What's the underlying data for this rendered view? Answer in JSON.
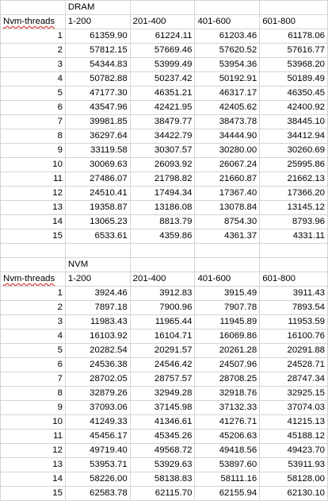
{
  "sections": [
    {
      "memory_label": "DRAM",
      "row_header": "Nvm-threads",
      "columns": [
        "1-200",
        "201-400",
        "401-600",
        "601-800"
      ],
      "rows": [
        {
          "threads": "1",
          "values": [
            "61359.90",
            "61224.11",
            "61203.46",
            "61178.06"
          ]
        },
        {
          "threads": "2",
          "values": [
            "57812.15",
            "57669.46",
            "57620.52",
            "57616.77"
          ]
        },
        {
          "threads": "3",
          "values": [
            "54344.83",
            "53999.49",
            "53954.36",
            "53968.20"
          ]
        },
        {
          "threads": "4",
          "values": [
            "50782.88",
            "50237.42",
            "50192.91",
            "50189.49"
          ]
        },
        {
          "threads": "5",
          "values": [
            "47177.30",
            "46351.21",
            "46317.17",
            "46350.45"
          ]
        },
        {
          "threads": "6",
          "values": [
            "43547.96",
            "42421.95",
            "42405.62",
            "42400.92"
          ]
        },
        {
          "threads": "7",
          "values": [
            "39981.85",
            "38479.77",
            "38473.78",
            "38445.10"
          ]
        },
        {
          "threads": "8",
          "values": [
            "36297.64",
            "34422.79",
            "34444.90",
            "34412.94"
          ]
        },
        {
          "threads": "9",
          "values": [
            "33119.58",
            "30307.57",
            "30280.00",
            "30260.69"
          ]
        },
        {
          "threads": "10",
          "values": [
            "30069.63",
            "26093.92",
            "26067.24",
            "25995.86"
          ]
        },
        {
          "threads": "11",
          "values": [
            "27486.07",
            "21798.82",
            "21660.87",
            "21662.13"
          ]
        },
        {
          "threads": "12",
          "values": [
            "24510.41",
            "17494.34",
            "17367.40",
            "17366.20"
          ]
        },
        {
          "threads": "13",
          "values": [
            "19358.87",
            "13186.08",
            "13078.84",
            "13145.12"
          ]
        },
        {
          "threads": "14",
          "values": [
            "13065.23",
            "8813.79",
            "8754.30",
            "8793.96"
          ]
        },
        {
          "threads": "15",
          "values": [
            "6533.61",
            "4359.86",
            "4361.37",
            "4331.11"
          ]
        }
      ]
    },
    {
      "memory_label": "NVM",
      "row_header": "Nvm-threads",
      "columns": [
        "1-200",
        "201-400",
        "401-600",
        "601-800"
      ],
      "rows": [
        {
          "threads": "1",
          "values": [
            "3924.46",
            "3912.83",
            "3915.49",
            "3911.43"
          ]
        },
        {
          "threads": "2",
          "values": [
            "7897.18",
            "7900.96",
            "7907.78",
            "7893.54"
          ]
        },
        {
          "threads": "3",
          "values": [
            "11983.43",
            "11965.44",
            "11945.89",
            "11953.59"
          ]
        },
        {
          "threads": "4",
          "values": [
            "16103.92",
            "16104.71",
            "16069.86",
            "16100.76"
          ]
        },
        {
          "threads": "5",
          "values": [
            "20282.54",
            "20291.57",
            "20261.28",
            "20291.88"
          ]
        },
        {
          "threads": "6",
          "values": [
            "24536.38",
            "24546.42",
            "24507.96",
            "24528.71"
          ]
        },
        {
          "threads": "7",
          "values": [
            "28702.05",
            "28757.57",
            "28708.25",
            "28747.34"
          ]
        },
        {
          "threads": "8",
          "values": [
            "32879.26",
            "32949.28",
            "32918.76",
            "32925.15"
          ]
        },
        {
          "threads": "9",
          "values": [
            "37093.06",
            "37145.98",
            "37132.33",
            "37074.03"
          ]
        },
        {
          "threads": "10",
          "values": [
            "41249.33",
            "41346.61",
            "41276.71",
            "41215.13"
          ]
        },
        {
          "threads": "11",
          "values": [
            "45456.17",
            "45345.26",
            "45206.63",
            "45188.12"
          ]
        },
        {
          "threads": "12",
          "values": [
            "49719.40",
            "49568.72",
            "49418.56",
            "49423.70"
          ]
        },
        {
          "threads": "13",
          "values": [
            "53953.71",
            "53929.63",
            "53897.60",
            "53911.93"
          ]
        },
        {
          "threads": "14",
          "values": [
            "58226.00",
            "58138.83",
            "58111.16",
            "58128.00"
          ]
        },
        {
          "threads": "15",
          "values": [
            "62583.78",
            "62115.70",
            "62155.94",
            "62130.10"
          ]
        }
      ]
    }
  ]
}
